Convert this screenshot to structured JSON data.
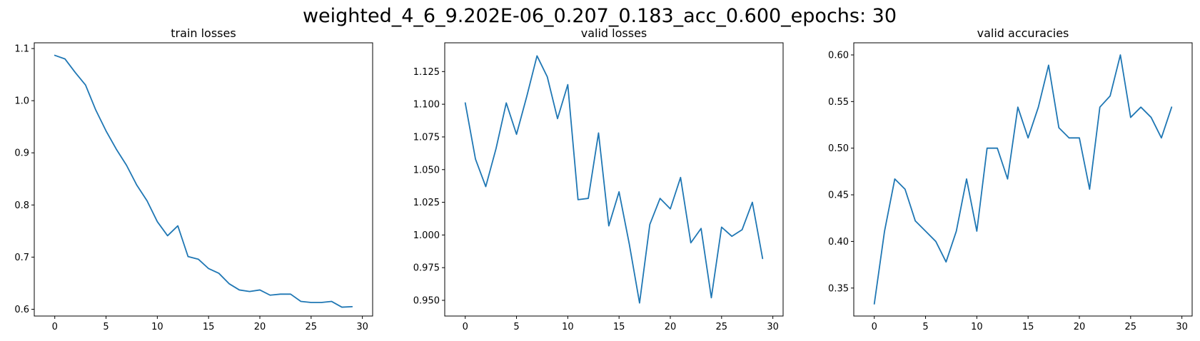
{
  "suptitle": "weighted_4_6_9.202E-06_0.207_0.183_acc_0.600_epochs: 30",
  "line_color": "#1f77b4",
  "chart_data": [
    {
      "type": "line",
      "title": "train losses",
      "xlabel": "",
      "ylabel": "",
      "x": [
        0,
        1,
        2,
        3,
        4,
        5,
        6,
        7,
        8,
        9,
        10,
        11,
        12,
        13,
        14,
        15,
        16,
        17,
        18,
        19,
        20,
        21,
        22,
        23,
        24,
        25,
        26,
        27,
        28,
        29
      ],
      "series": [
        {
          "values": [
            1.087,
            1.08,
            1.054,
            1.03,
            0.982,
            0.942,
            0.907,
            0.876,
            0.838,
            0.808,
            0.768,
            0.741,
            0.76,
            0.701,
            0.696,
            0.678,
            0.669,
            0.649,
            0.637,
            0.634,
            0.637,
            0.627,
            0.629,
            0.629,
            0.615,
            0.613,
            0.613,
            0.615,
            0.604,
            0.605
          ]
        }
      ],
      "xlim": [
        -2,
        31
      ],
      "ylim": [
        0.587,
        1.111
      ],
      "xticks": [
        0,
        5,
        10,
        15,
        20,
        25,
        30
      ],
      "xtick_labels": [
        "0",
        "5",
        "10",
        "15",
        "20",
        "25",
        "30"
      ],
      "yticks": [
        0.6,
        0.7,
        0.8,
        0.9,
        1.0,
        1.1
      ],
      "ytick_labels": [
        "0.6",
        "0.7",
        "0.8",
        "0.9",
        "1.0",
        "1.1"
      ],
      "grid": false
    },
    {
      "type": "line",
      "title": "valid losses",
      "xlabel": "",
      "ylabel": "",
      "x": [
        0,
        1,
        2,
        3,
        4,
        5,
        6,
        7,
        8,
        9,
        10,
        11,
        12,
        13,
        14,
        15,
        16,
        17,
        18,
        19,
        20,
        21,
        22,
        23,
        24,
        25,
        26,
        27,
        28,
        29
      ],
      "series": [
        {
          "values": [
            1.101,
            1.058,
            1.037,
            1.066,
            1.101,
            1.077,
            1.106,
            1.137,
            1.121,
            1.089,
            1.115,
            1.027,
            1.028,
            1.078,
            1.007,
            1.033,
            0.993,
            0.948,
            1.008,
            1.028,
            1.02,
            1.044,
            0.994,
            1.005,
            0.952,
            1.006,
            0.999,
            1.004,
            1.025,
            0.982
          ]
        }
      ],
      "xlim": [
        -2,
        31
      ],
      "ylim": [
        0.938,
        1.147
      ],
      "xticks": [
        0,
        5,
        10,
        15,
        20,
        25,
        30
      ],
      "xtick_labels": [
        "0",
        "5",
        "10",
        "15",
        "20",
        "25",
        "30"
      ],
      "yticks": [
        0.95,
        0.975,
        1.0,
        1.025,
        1.05,
        1.075,
        1.1,
        1.125
      ],
      "ytick_labels": [
        "0.950",
        "0.975",
        "1.000",
        "1.025",
        "1.050",
        "1.075",
        "1.100",
        "1.125"
      ],
      "grid": false
    },
    {
      "type": "line",
      "title": "valid accuracies",
      "xlabel": "",
      "ylabel": "",
      "x": [
        0,
        1,
        2,
        3,
        4,
        5,
        6,
        7,
        8,
        9,
        10,
        11,
        12,
        13,
        14,
        15,
        16,
        17,
        18,
        19,
        20,
        21,
        22,
        23,
        24,
        25,
        26,
        27,
        28,
        29
      ],
      "series": [
        {
          "values": [
            0.333,
            0.411,
            0.467,
            0.456,
            0.422,
            0.411,
            0.4,
            0.378,
            0.411,
            0.467,
            0.411,
            0.5,
            0.5,
            0.467,
            0.544,
            0.511,
            0.544,
            0.589,
            0.522,
            0.511,
            0.511,
            0.456,
            0.544,
            0.556,
            0.6,
            0.533,
            0.544,
            0.533,
            0.511,
            0.544
          ]
        }
      ],
      "xlim": [
        -2,
        31
      ],
      "ylim": [
        0.32,
        0.613
      ],
      "xticks": [
        0,
        5,
        10,
        15,
        20,
        25,
        30
      ],
      "xtick_labels": [
        "0",
        "5",
        "10",
        "15",
        "20",
        "25",
        "30"
      ],
      "yticks": [
        0.35,
        0.4,
        0.45,
        0.5,
        0.55,
        0.6
      ],
      "ytick_labels": [
        "0.35",
        "0.40",
        "0.45",
        "0.50",
        "0.55",
        "0.60"
      ],
      "grid": false
    }
  ]
}
